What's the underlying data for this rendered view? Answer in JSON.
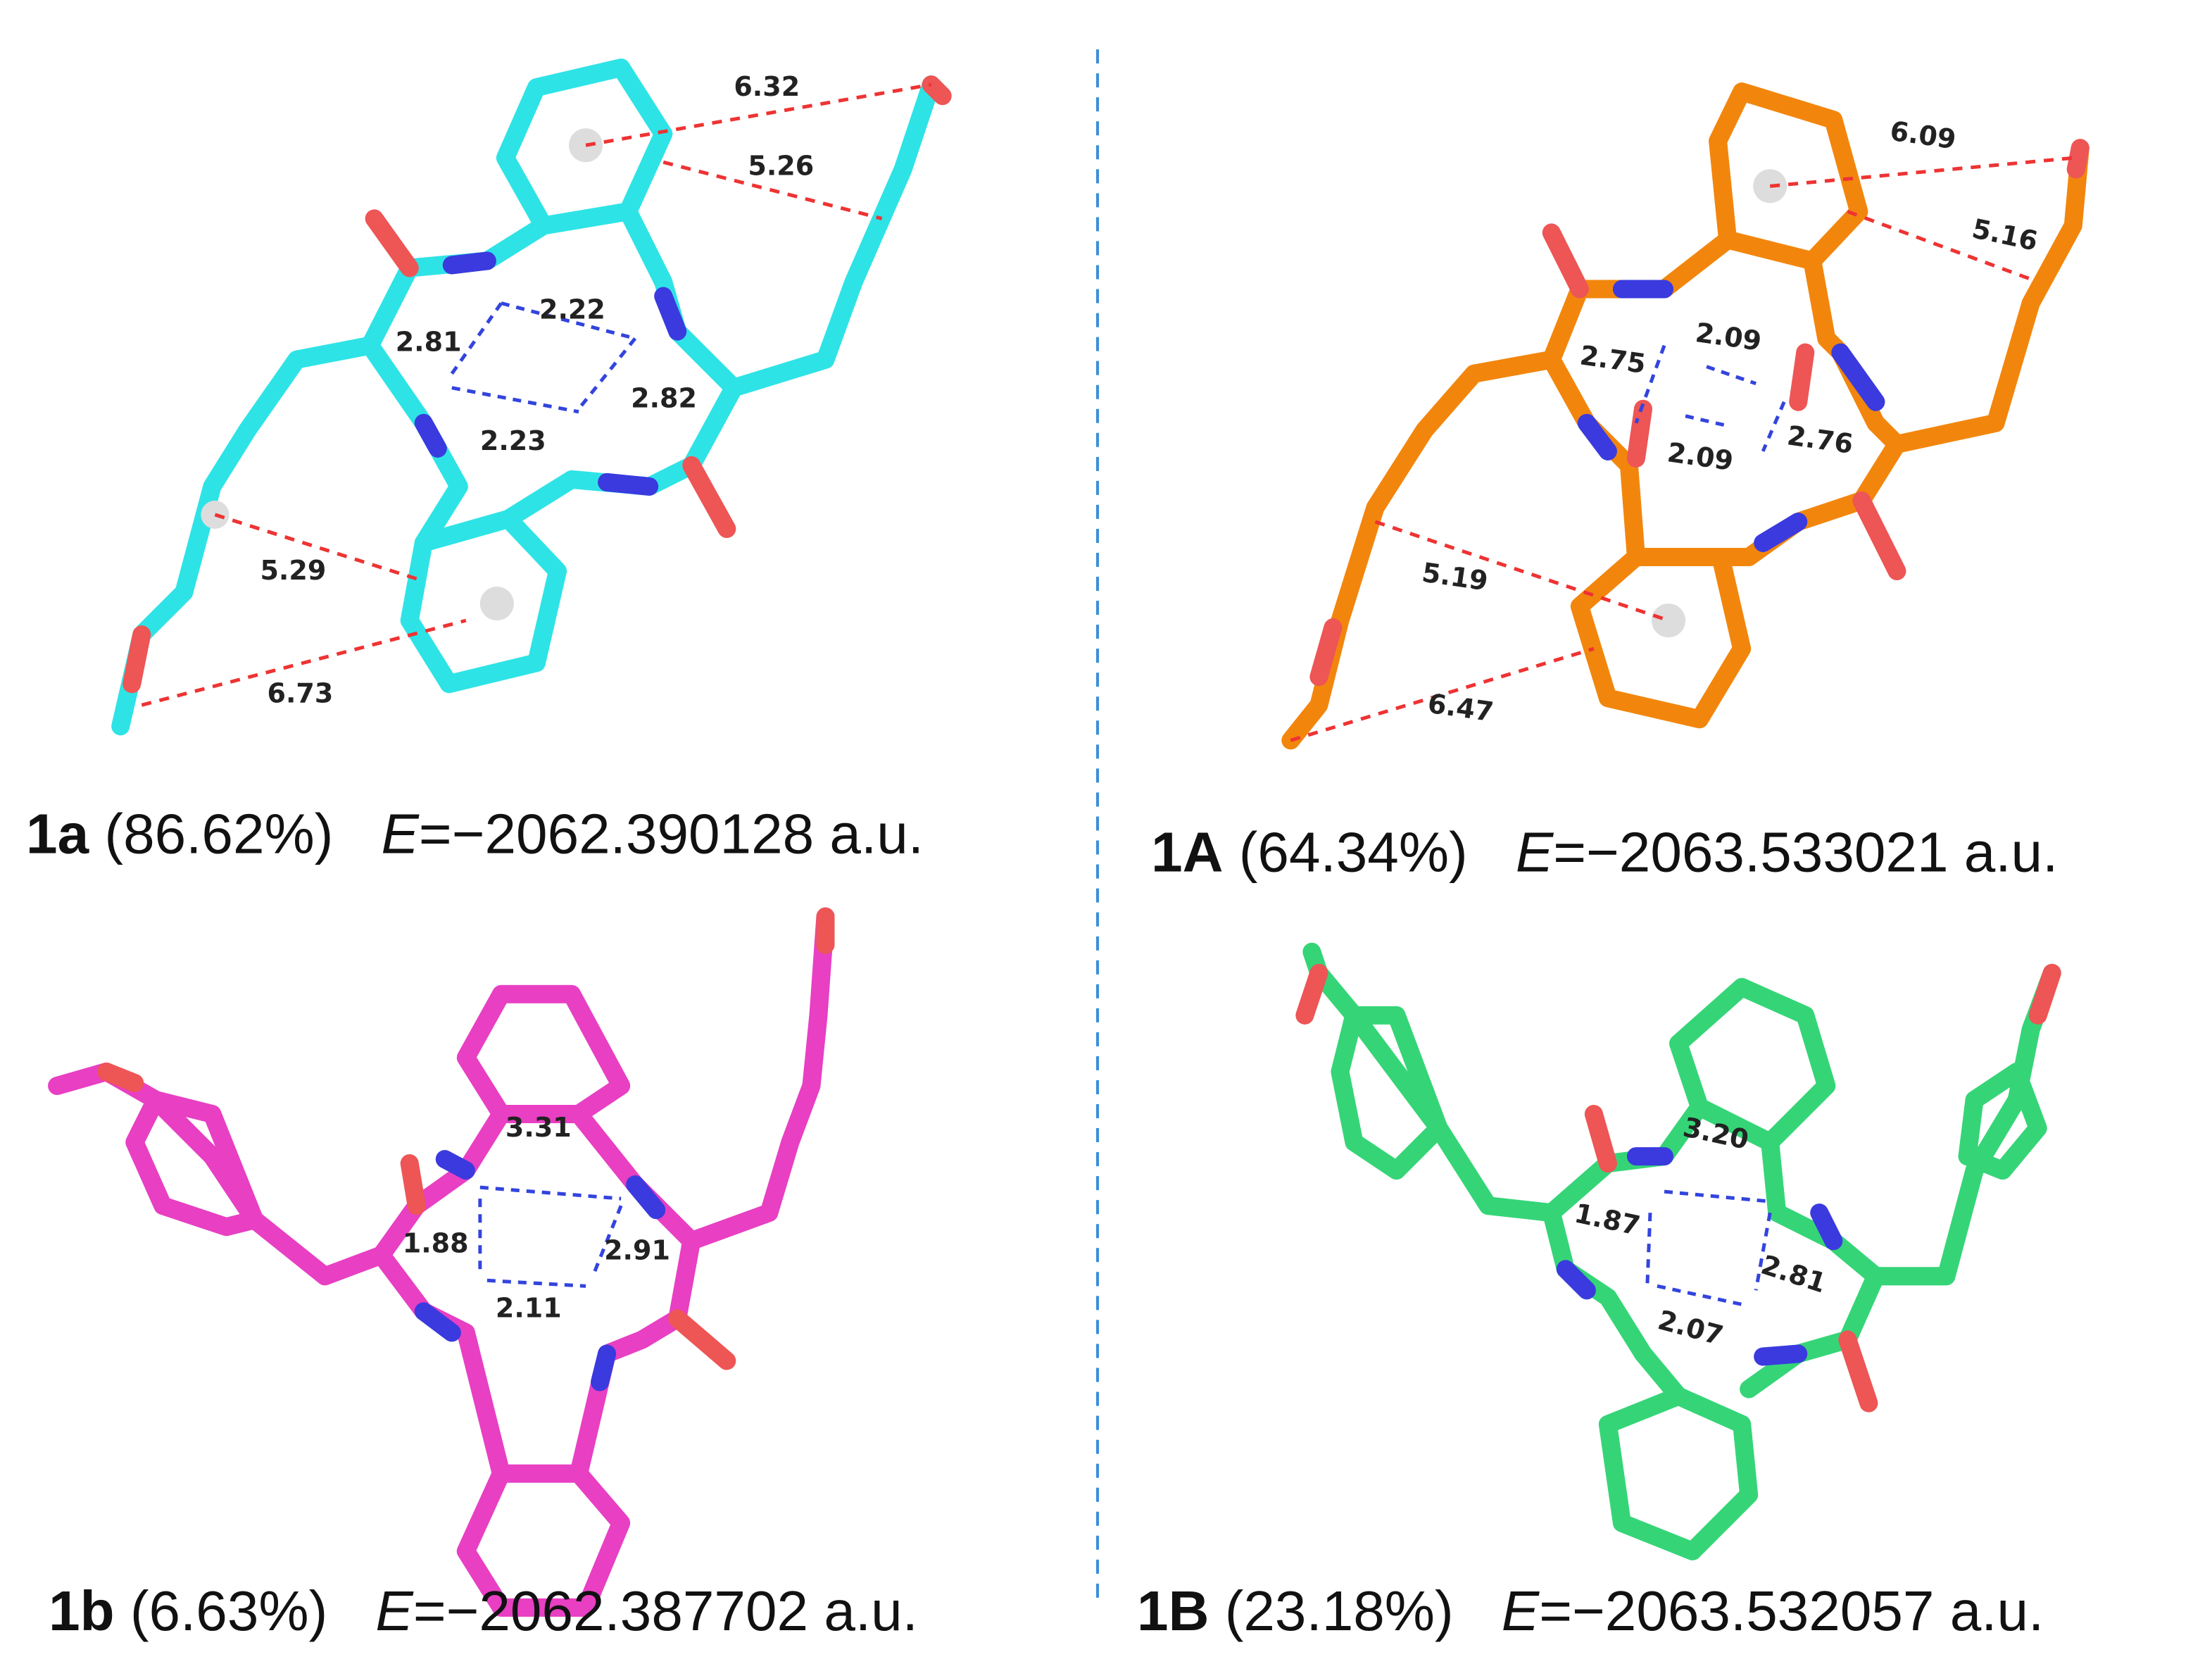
{
  "colors": {
    "1a": "#2ee3e6",
    "1A": "#f2860d",
    "1b": "#e83fc3",
    "1B": "#35d577",
    "nitrogen": "#3a3adf",
    "oxygen": "#ee5555",
    "hbond": "#3344dd",
    "ch_pi": "#ee3333",
    "divider": "#3b8fd9"
  },
  "panels": [
    {
      "id": "1a",
      "label": "1a",
      "population": "(86.62%)",
      "energy_symbol": "E",
      "energy": "=−2062.390128 a.u.",
      "distances": [
        "6.32",
        "5.26",
        "2.22",
        "2.81",
        "2.82",
        "2.23",
        "5.29",
        "6.73"
      ]
    },
    {
      "id": "1A",
      "label": "1A",
      "population": "(64.34%)",
      "energy_symbol": "E",
      "energy": "=−2063.533021 a.u.",
      "distances": [
        "6.09",
        "5.16",
        "2.09",
        "2.75",
        "2.76",
        "2.09",
        "5.19",
        "6.47"
      ]
    },
    {
      "id": "1b",
      "label": "1b",
      "population": "(6.63%)",
      "energy_symbol": "E",
      "energy": "=−2062.387702 a.u.",
      "distances": [
        "3.31",
        "1.88",
        "2.91",
        "2.11"
      ]
    },
    {
      "id": "1B",
      "label": "1B",
      "population": "(23.18%)",
      "energy_symbol": "E",
      "energy": "=−2063.532057 a.u.",
      "distances": [
        "3.20",
        "1.87",
        "2.81",
        "2.07"
      ]
    }
  ]
}
